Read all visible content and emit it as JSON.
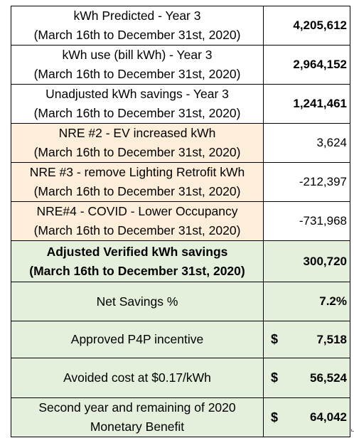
{
  "rows": [
    {
      "line1": "kWh Predicted  - Year 3",
      "line2": "(March 16th to December 31st, 2020)",
      "value": "4,205,612"
    },
    {
      "line1": "kWh use (bill kWh) - Year 3",
      "line2": "(March 16th to December 31st, 2020)",
      "value": "2,964,152"
    },
    {
      "line1": "Unadjusted kWh savings - Year 3",
      "line2": "(March 16th to December 31st, 2020)",
      "value": "1,241,461"
    },
    {
      "line1": "NRE #2 - EV increased kWh",
      "line2": "(March 16th to December 31st, 2020)",
      "value": "3,624"
    },
    {
      "line1": "NRE #3 - remove Lighting Retrofit kWh",
      "line2": "(March 16th to December 31st, 2020)",
      "value": "-212,397"
    },
    {
      "line1": "NRE#4 - COVID - Lower Occupancy",
      "line2": "(March 16th to December 31st, 2020)",
      "value": "-731,968"
    },
    {
      "line1": "Adjusted Verified kWh savings",
      "line2": "(March 16th to December 31st, 2020)",
      "value": "300,720"
    },
    {
      "line1": "Net Savings %",
      "value": "7.2%"
    },
    {
      "line1": "Approved P4P incentive",
      "currency": "$",
      "value": "7,518"
    },
    {
      "line1": "Avoided cost at $0.17/kWh",
      "currency": "$",
      "value": "56,524"
    },
    {
      "line1": "Second year and remaining of 2020",
      "line2": "Monetary Benefit",
      "currency": "$",
      "value": "64,042"
    }
  ],
  "colors": {
    "header_fill": "#ffffff",
    "nre_fill": "#fdeed9",
    "summary_fill": "#e4efdc",
    "border": "#000000"
  }
}
